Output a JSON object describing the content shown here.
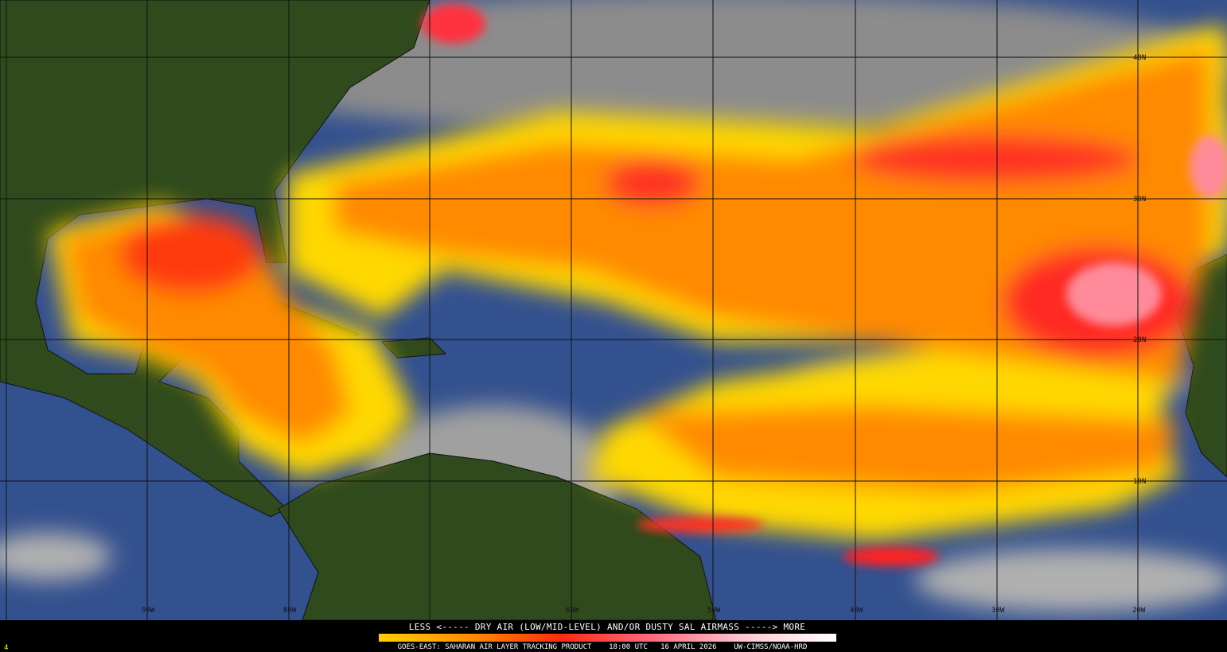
{
  "product": {
    "legend_title": "LESS <----- DRY AIR (LOW/MID-LEVEL) AND/OR DUSTY SAL AIRMASS -----> MORE",
    "footer": "GOES-EAST: SAHARAN AIR LAYER TRACKING PRODUCT    18:00 UTC   16 APRIL 2026    UW-CIMSS/NOAA-HRD",
    "frame_number": "4",
    "colorbar_colors": [
      "#ffd000",
      "#ff8c00",
      "#ff2a10",
      "#ff6a80",
      "#ffc8d0",
      "#ffffff"
    ]
  },
  "grid": {
    "latitude_labels": [
      "40N",
      "30N",
      "20N",
      "10N"
    ],
    "longitude_labels": [
      "90W",
      "80W",
      "60W",
      "50W",
      "40W",
      "30W",
      "20W"
    ]
  },
  "colors": {
    "ocean": "#3a5a9a",
    "land": "#2e4a1a",
    "cloud": "#8a8a8a",
    "dust_low": "#ffd800",
    "dust_mid": "#ff7a00",
    "dust_high": "#ff2020"
  }
}
